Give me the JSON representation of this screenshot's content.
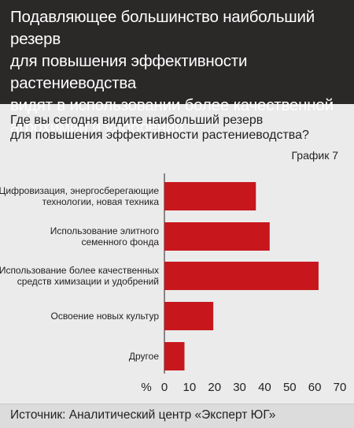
{
  "header": {
    "title": "Подавляющее большинство наибольший резерв\nдля повышения эффективности растениеводства\nвидят в использовании более качественной\nагрохимии и удобрений"
  },
  "question": "Где вы сегодня видите наибольший резерв\nдля повышения эффективности растениеводства?",
  "graph_label": "График 7",
  "source": "Источник: Аналитический центр «Эксперт ЮГ»",
  "chart_data": {
    "type": "bar",
    "orientation": "horizontal",
    "categories": [
      [
        "Цифровизация, энергосберегающие",
        "технологии, новая техника"
      ],
      [
        "Использование элитного",
        "семенного фонда"
      ],
      [
        "Использование более качественных",
        "средств химизации и  удобрений"
      ],
      [
        "Освоение новых культур"
      ],
      [
        "Другое"
      ]
    ],
    "values": [
      36.5,
      42,
      61.5,
      19.5,
      8
    ],
    "xlim": [
      0,
      70
    ],
    "xticks": [
      0,
      10,
      20,
      30,
      40,
      50,
      60,
      70
    ],
    "xunit": "%",
    "bar_color": "#c8161d",
    "grid": false
  }
}
